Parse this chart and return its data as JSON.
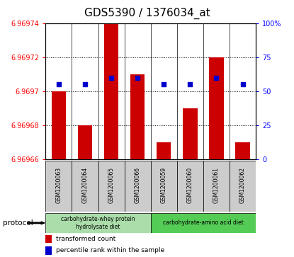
{
  "title": "GDS5390 / 1376034_at",
  "samples": [
    "GSM1200063",
    "GSM1200064",
    "GSM1200065",
    "GSM1200066",
    "GSM1200059",
    "GSM1200060",
    "GSM1200061",
    "GSM1200062"
  ],
  "red_values": [
    6.9697,
    6.96968,
    6.96974,
    6.96971,
    6.96967,
    6.96969,
    6.96972,
    6.96967
  ],
  "blue_values": [
    55,
    55,
    60,
    60,
    55,
    55,
    60,
    55
  ],
  "ylim_left": [
    6.96966,
    6.96974
  ],
  "ylim_right": [
    0,
    100
  ],
  "yticks_left": [
    6.96966,
    6.96968,
    6.9697,
    6.96972,
    6.96974
  ],
  "ytick_labels_left": [
    "6.96966",
    "6.96968",
    "6.9697",
    "6.96972",
    "6.96974"
  ],
  "yticks_right": [
    0,
    25,
    50,
    75,
    100
  ],
  "ytick_labels_right": [
    "0",
    "25",
    "50",
    "75",
    "100%"
  ],
  "bar_color": "#cc0000",
  "dot_color": "#0000cc",
  "protocol_groups": [
    {
      "label": "carbohydrate-whey protein\nhydrolysate diet",
      "start": 0,
      "end": 4,
      "color": "#aaddaa"
    },
    {
      "label": "carbohydrate-amino acid diet",
      "start": 4,
      "end": 8,
      "color": "#55cc55"
    }
  ],
  "protocol_label": "protocol",
  "legend_items": [
    {
      "color": "#cc0000",
      "label": "transformed count"
    },
    {
      "color": "#0000cc",
      "label": "percentile rank within the sample"
    }
  ],
  "title_fontsize": 11,
  "tick_label_fontsize": 7,
  "bar_width": 0.55,
  "dot_size": 20,
  "baseline": 6.96966
}
